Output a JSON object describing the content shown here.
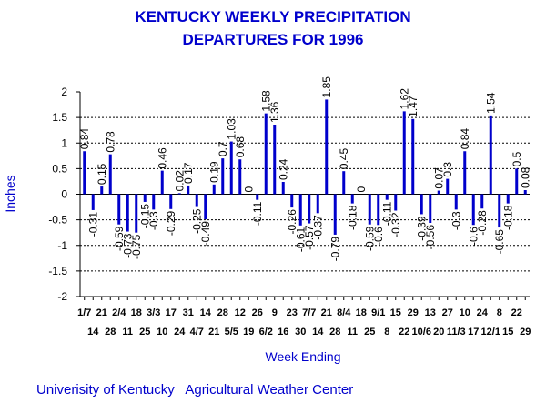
{
  "chart_data": {
    "type": "bar",
    "title": "KENTUCKY WEEKLY PRECIPITATION",
    "subtitle": "DEPARTURES FOR 1996",
    "xlabel": "Week Ending",
    "ylabel": "Inches",
    "ylim": [
      -2,
      2
    ],
    "yticks": [
      "2",
      "1.5",
      "1",
      "0.5",
      "0",
      "-0.5",
      "-1",
      "-1.5",
      "-2"
    ],
    "grid": true,
    "bar_color": "#0000cc",
    "categories": [
      "1/7",
      "14",
      "21",
      "28",
      "2/4",
      "11",
      "18",
      "25",
      "3/3",
      "10",
      "17",
      "24",
      "31",
      "4/7",
      "14",
      "21",
      "28",
      "5/5",
      "12",
      "19",
      "26",
      "6/2",
      "9",
      "16",
      "23",
      "30",
      "7/7",
      "14",
      "21",
      "28",
      "8/4",
      "11",
      "18",
      "25",
      "9/1",
      "8",
      "15",
      "22",
      "29",
      "10/6",
      "13",
      "20",
      "27",
      "11/3",
      "10",
      "17",
      "24",
      "12/1",
      "8",
      "15",
      "22",
      "29"
    ],
    "values": [
      0.84,
      -0.31,
      0.15,
      0.78,
      -0.59,
      -0.73,
      -0.75,
      -0.15,
      -0.3,
      0.46,
      -0.29,
      0.02,
      0.17,
      -0.25,
      -0.49,
      0.19,
      0.7,
      1.03,
      0.68,
      0,
      -0.11,
      1.58,
      1.36,
      0.24,
      -0.26,
      -0.61,
      -0.57,
      -0.37,
      1.85,
      -0.79,
      0.45,
      -0.18,
      0,
      -0.59,
      -0.6,
      -0.11,
      -0.32,
      1.62,
      1.47,
      -0.39,
      -0.56,
      0.07,
      0.3,
      -0.3,
      0.84,
      -0.6,
      -0.28,
      1.54,
      -0.65,
      -0.18,
      0.5,
      0.08
    ],
    "data_labels": [
      "0.84",
      "-0.31",
      "0.15",
      "0.78",
      "-0.59",
      "-0.73",
      "-0.75",
      "-0.15",
      "-0.3",
      "0.46",
      "-0.29",
      "0.02",
      "0.17",
      "-0.25",
      "-0.49",
      "0.19",
      "0.7",
      "1.03",
      "0.68",
      "0",
      "-0.11",
      "1.58",
      "1.36",
      "0.24",
      "-0.26",
      "-0.61",
      "-0.57",
      "-0.37",
      "1.85",
      "-0.79",
      "0.45",
      "-0.18",
      "0",
      "-0.59",
      "-0.6",
      "-0.11",
      "-0.32",
      "1.62",
      "1.47",
      "-0.39",
      "-0.56",
      "0.07",
      "0.3",
      "-0.3",
      "0.84",
      "-0.6",
      "-0.28",
      "1.54",
      "-0.65",
      "-0.18",
      "0.5",
      "0.08"
    ]
  },
  "footer": "Univerisity of Kentucky   Agricultural Weather Center"
}
